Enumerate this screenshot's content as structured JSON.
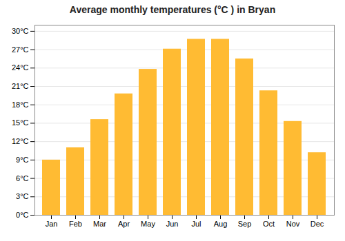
{
  "chart_data": {
    "type": "bar",
    "title": "Average monthly temperatures (°C ) in Bryan",
    "categories": [
      "Jan",
      "Feb",
      "Mar",
      "Apr",
      "May",
      "Jun",
      "Jul",
      "Aug",
      "Sep",
      "Oct",
      "Nov",
      "Dec"
    ],
    "values": [
      9.0,
      11.0,
      15.6,
      19.8,
      23.8,
      27.1,
      28.7,
      28.7,
      25.5,
      20.3,
      15.3,
      10.2
    ],
    "color": "#FFBB33",
    "ylim": [
      0,
      31
    ],
    "yticks": [
      {
        "value": 0,
        "label": "0°C"
      },
      {
        "value": 3,
        "label": "3°C"
      },
      {
        "value": 6,
        "label": "6°C"
      },
      {
        "value": 9,
        "label": "9°C"
      },
      {
        "value": 12,
        "label": "12°C"
      },
      {
        "value": 15,
        "label": "15°C"
      },
      {
        "value": 18,
        "label": "18°C"
      },
      {
        "value": 21,
        "label": "21°C"
      },
      {
        "value": 24,
        "label": "24°C"
      },
      {
        "value": 27,
        "label": "27°C"
      },
      {
        "value": 30,
        "label": "30°C"
      }
    ],
    "grid": true
  }
}
